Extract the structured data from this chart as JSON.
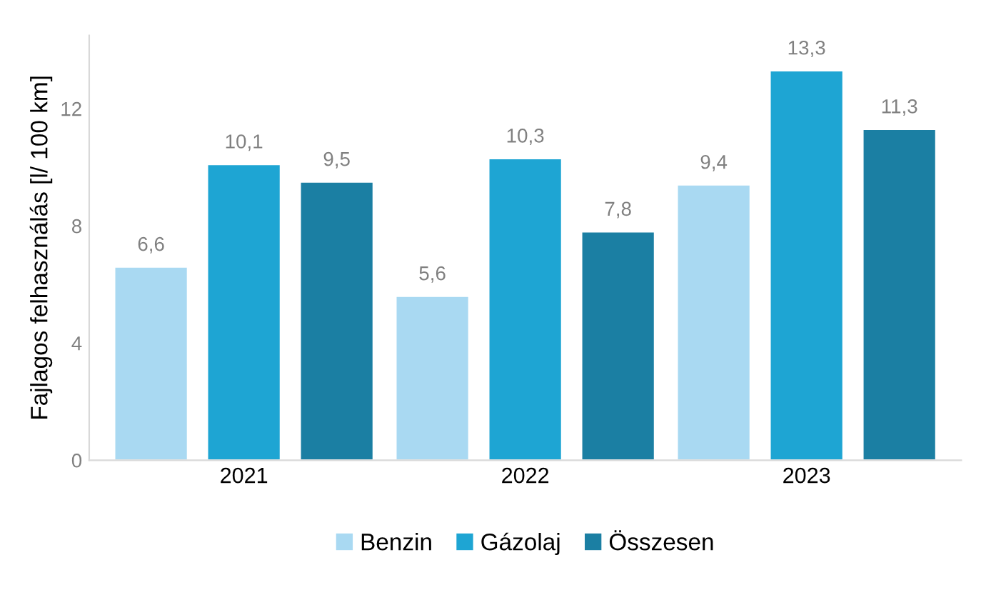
{
  "chart_data": {
    "type": "bar",
    "ylabel": "Fajlagos felhasználás [l/ 100 km]",
    "categories": [
      "2021",
      "2022",
      "2023"
    ],
    "series": [
      {
        "name": "Benzin",
        "color": "#a9d9f2",
        "values": [
          6.6,
          5.6,
          9.4
        ],
        "value_labels": [
          "6,6",
          "5,6",
          "9,4"
        ]
      },
      {
        "name": "Gázolaj",
        "color": "#1ea5d3",
        "values": [
          10.1,
          10.3,
          13.3
        ],
        "value_labels": [
          "10,1",
          "10,3",
          "13,3"
        ]
      },
      {
        "name": "Összesen",
        "color": "#1b7fa3",
        "values": [
          9.5,
          7.8,
          11.3
        ],
        "value_labels": [
          "9,5",
          "7,8",
          "11,3"
        ]
      }
    ],
    "ylim": [
      0,
      14.5
    ],
    "yticks": [
      0,
      4,
      8,
      12
    ],
    "grid": false,
    "legend": "bottom"
  }
}
